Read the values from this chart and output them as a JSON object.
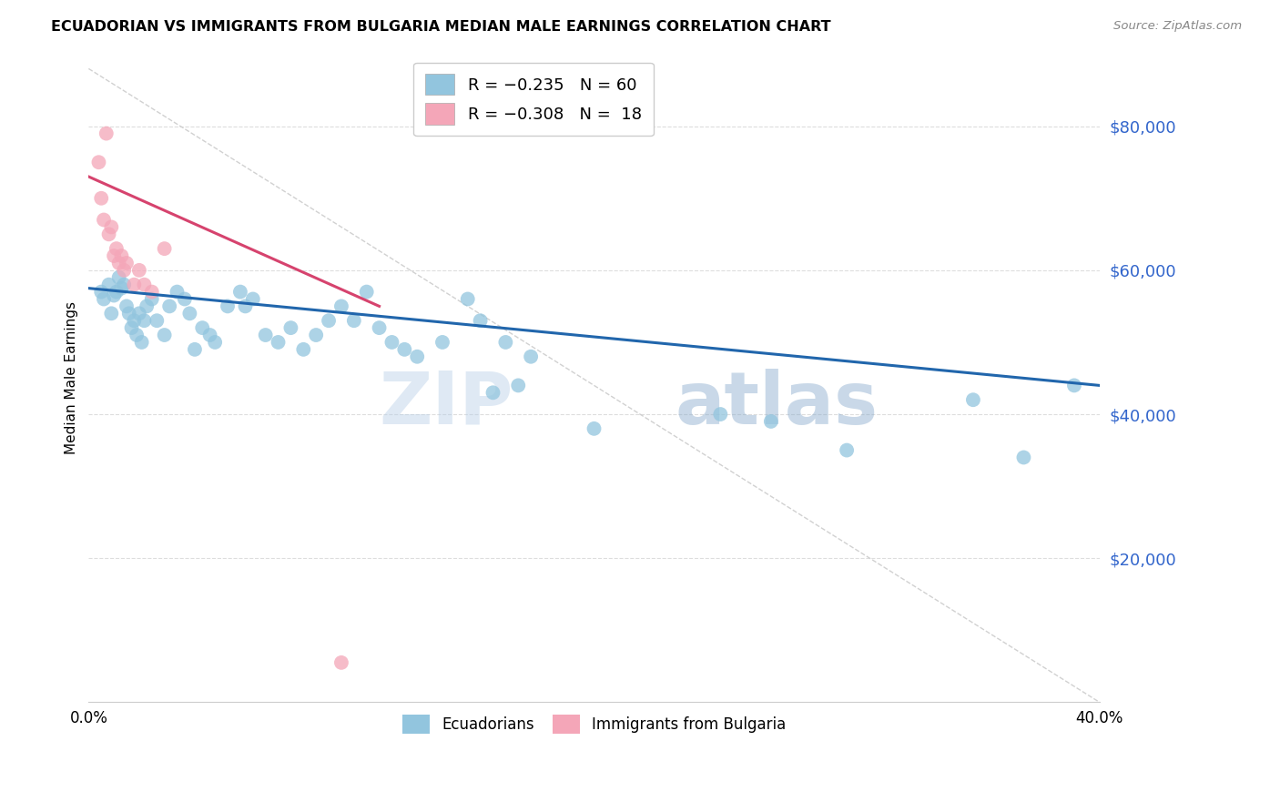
{
  "title": "ECUADORIAN VS IMMIGRANTS FROM BULGARIA MEDIAN MALE EARNINGS CORRELATION CHART",
  "source": "Source: ZipAtlas.com",
  "ylabel": "Median Male Earnings",
  "ytick_labels": [
    "$20,000",
    "$40,000",
    "$60,000",
    "$80,000"
  ],
  "ytick_values": [
    20000,
    40000,
    60000,
    80000
  ],
  "ymin": 0,
  "ymax": 90000,
  "xmin": 0.0,
  "xmax": 0.4,
  "watermark_zip": "ZIP",
  "watermark_atlas": "atlas",
  "blue_color": "#92c5de",
  "pink_color": "#f4a6b8",
  "trendline_blue": "#2166ac",
  "trendline_pink": "#d6436e",
  "trendline_gray": "#cccccc",
  "legend_top": [
    {
      "label": "R = −0.235   N = 60",
      "color": "#92c5de"
    },
    {
      "label": "R = −0.308   N =  18",
      "color": "#f4a6b8"
    }
  ],
  "legend_labels_bottom": [
    "Ecuadorians",
    "Immigrants from Bulgaria"
  ],
  "ecuadorians_x": [
    0.005,
    0.006,
    0.008,
    0.009,
    0.01,
    0.011,
    0.012,
    0.013,
    0.014,
    0.015,
    0.016,
    0.017,
    0.018,
    0.019,
    0.02,
    0.021,
    0.022,
    0.023,
    0.025,
    0.027,
    0.03,
    0.032,
    0.035,
    0.038,
    0.04,
    0.042,
    0.045,
    0.048,
    0.05,
    0.055,
    0.06,
    0.062,
    0.065,
    0.07,
    0.075,
    0.08,
    0.085,
    0.09,
    0.095,
    0.1,
    0.105,
    0.11,
    0.115,
    0.12,
    0.125,
    0.13,
    0.14,
    0.15,
    0.155,
    0.16,
    0.165,
    0.17,
    0.175,
    0.2,
    0.25,
    0.27,
    0.3,
    0.35,
    0.37,
    0.39
  ],
  "ecuadorians_y": [
    57000,
    56000,
    58000,
    54000,
    56500,
    57000,
    59000,
    57500,
    58000,
    55000,
    54000,
    52000,
    53000,
    51000,
    54000,
    50000,
    53000,
    55000,
    56000,
    53000,
    51000,
    55000,
    57000,
    56000,
    54000,
    49000,
    52000,
    51000,
    50000,
    55000,
    57000,
    55000,
    56000,
    51000,
    50000,
    52000,
    49000,
    51000,
    53000,
    55000,
    53000,
    57000,
    52000,
    50000,
    49000,
    48000,
    50000,
    56000,
    53000,
    43000,
    50000,
    44000,
    48000,
    38000,
    40000,
    39000,
    35000,
    42000,
    34000,
    44000
  ],
  "bulgaria_x": [
    0.004,
    0.005,
    0.006,
    0.007,
    0.008,
    0.009,
    0.01,
    0.011,
    0.012,
    0.013,
    0.014,
    0.015,
    0.018,
    0.02,
    0.022,
    0.025,
    0.03,
    0.1
  ],
  "bulgaria_y": [
    75000,
    70000,
    67000,
    79000,
    65000,
    66000,
    62000,
    63000,
    61000,
    62000,
    60000,
    61000,
    58000,
    60000,
    58000,
    57000,
    63000,
    5500
  ],
  "blue_trendline_x": [
    0.0,
    0.4
  ],
  "blue_trendline_y": [
    57500,
    44000
  ],
  "pink_trendline_x": [
    0.0,
    0.115
  ],
  "pink_trendline_y": [
    73000,
    55000
  ],
  "gray_line_x": [
    0.0,
    0.4
  ],
  "gray_line_y": [
    88000,
    0
  ]
}
